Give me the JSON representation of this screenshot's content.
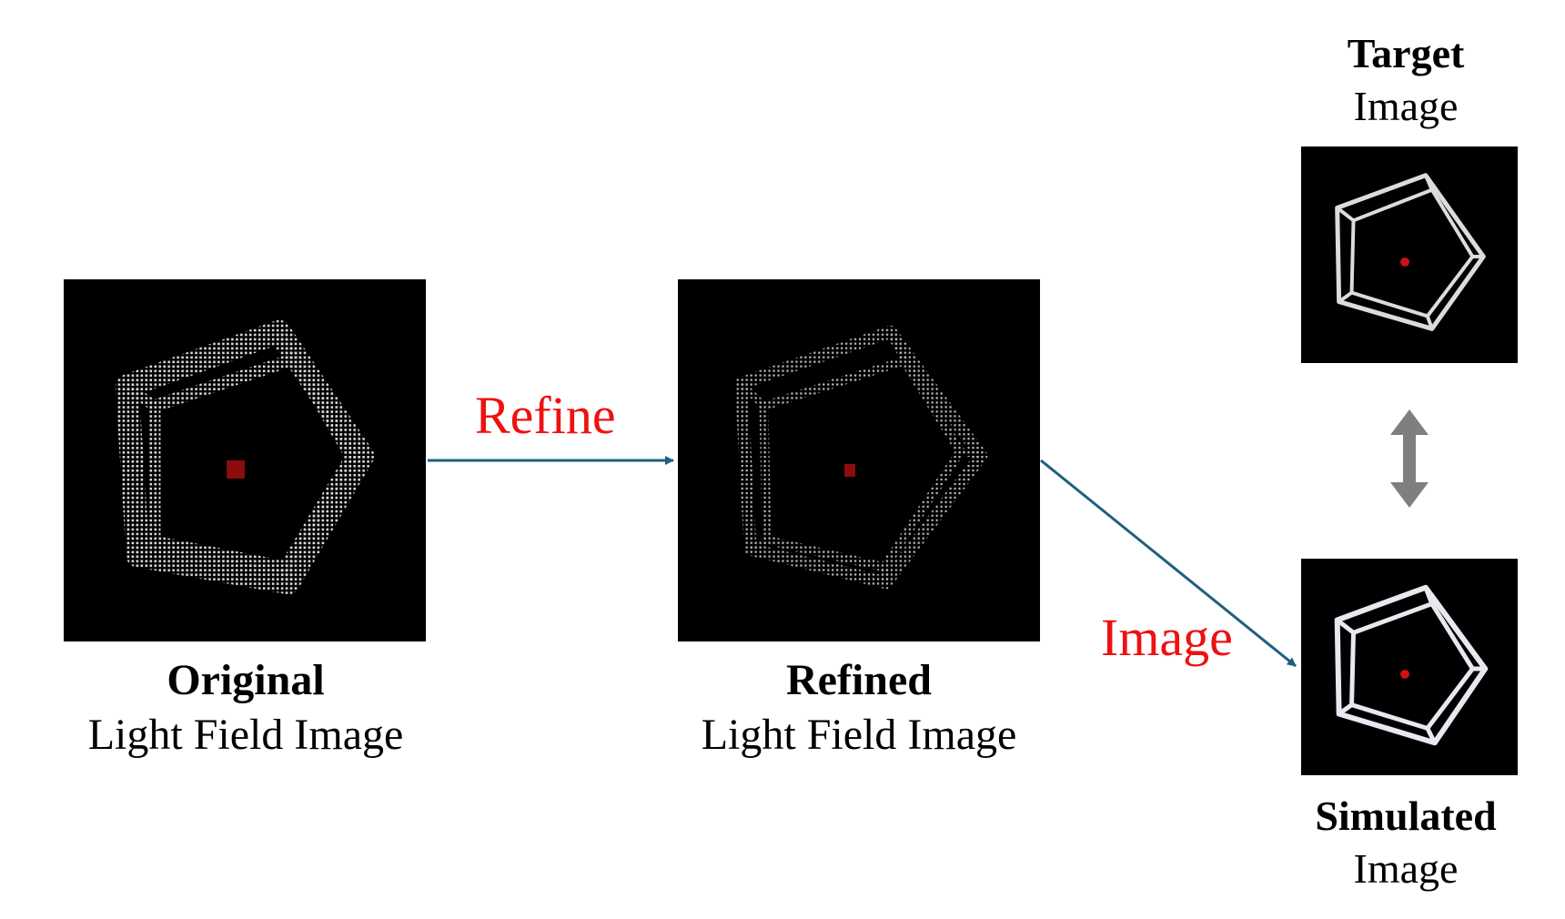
{
  "colors": {
    "arrow": "#1f5f7e",
    "label": "#ee1111",
    "double_arrow": "#7f7f7f",
    "panel_bg": "#000000"
  },
  "panels": {
    "original": {
      "bold": "Original",
      "normal": "Light Field Image"
    },
    "refined": {
      "bold": "Refined",
      "normal": "Light Field Image"
    },
    "target": {
      "bold": "Target",
      "normal": "Image"
    },
    "simulated": {
      "bold": "Simulated",
      "normal": "Image"
    }
  },
  "arrows": {
    "refine_label": "Refine",
    "image_label": "Image"
  }
}
